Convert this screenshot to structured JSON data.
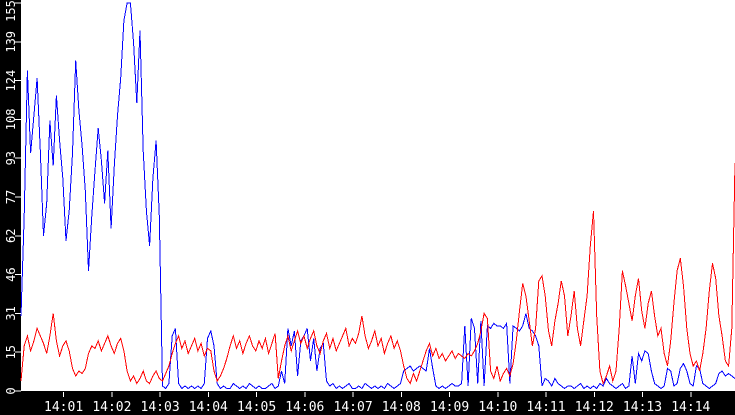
{
  "chart_data": {
    "type": "line",
    "title": "",
    "xlabel": "",
    "ylabel": "",
    "grid": false,
    "legend": null,
    "plot_background": "#ffffff",
    "frame_background": "#000000",
    "axis_text_color": "#ffffff",
    "x_axis": {
      "tick_labels": [
        "14:01",
        "14:02",
        "14:03",
        "14:04",
        "14:05",
        "14:06",
        "14:07",
        "14:08",
        "14:09",
        "14:10",
        "14:11",
        "14:12",
        "14:13",
        "14:14"
      ],
      "start_time": "14:00:07",
      "start_offset_seconds": 7,
      "step_seconds": 4,
      "end_time": "14:14:55"
    },
    "y_axis": {
      "tick_labels": [
        "0",
        "15",
        "31",
        "46",
        "62",
        "77",
        "93",
        "108",
        "124",
        "139",
        "155"
      ],
      "tick_values": [
        0,
        15.5,
        31,
        46.5,
        62,
        77.5,
        93,
        108.5,
        124,
        139.5,
        155
      ],
      "range": [
        0,
        155
      ]
    },
    "series": [
      {
        "name": "blue",
        "color": "#0000ff",
        "values": [
          30,
          70,
          128,
          95,
          110,
          125,
          96,
          62,
          75,
          108,
          90,
          118,
          100,
          85,
          60,
          72,
          95,
          132,
          112,
          98,
          80,
          48,
          70,
          88,
          105,
          92,
          75,
          96,
          65,
          90,
          110,
          125,
          148,
          155,
          155,
          139,
          115,
          144,
          96,
          72,
          58,
          85,
          100,
          70,
          2,
          1,
          3,
          22,
          25,
          3,
          1,
          2,
          1,
          2,
          1,
          2,
          1,
          3,
          21,
          24,
          18,
          3,
          1,
          2,
          1,
          1,
          3,
          2,
          1,
          2,
          1,
          3,
          2,
          1,
          2,
          1,
          1,
          2,
          3,
          1,
          2,
          8,
          3,
          25,
          18,
          24,
          6,
          20,
          22,
          25,
          12,
          21,
          8,
          17,
          19,
          4,
          2,
          3,
          1,
          2,
          1,
          2,
          3,
          1,
          1,
          2,
          1,
          3,
          2,
          1,
          2,
          1,
          2,
          1,
          3,
          2,
          1,
          2,
          3,
          8,
          9,
          10,
          8,
          9,
          10,
          9,
          8,
          17,
          9,
          2,
          1,
          2,
          1,
          2,
          3,
          2,
          2,
          3,
          26,
          2,
          29,
          25,
          3,
          28,
          2,
          26,
          25,
          27,
          26,
          26,
          25,
          27,
          3,
          26,
          25,
          24,
          26,
          31,
          25,
          24,
          22,
          18,
          2,
          5,
          4,
          2,
          5,
          3,
          2,
          1,
          2,
          2,
          1,
          2,
          3,
          1,
          2,
          1,
          2,
          1,
          3,
          2,
          5,
          3,
          2,
          1,
          2,
          3,
          1,
          2,
          14,
          3,
          15,
          12,
          16,
          15,
          8,
          3,
          2,
          1,
          2,
          9,
          8,
          2,
          3,
          9,
          11,
          8,
          3,
          2,
          10,
          9,
          3,
          2,
          1,
          2,
          3,
          7,
          8,
          6,
          7,
          6,
          5
        ]
      },
      {
        "name": "red",
        "color": "#ff0000",
        "values": [
          4,
          18,
          22,
          16,
          20,
          25,
          22,
          19,
          15,
          22,
          31,
          20,
          14,
          18,
          20,
          16,
          9,
          6,
          8,
          7,
          9,
          15,
          18,
          17,
          20,
          16,
          19,
          22,
          18,
          15,
          19,
          21,
          16,
          8,
          4,
          6,
          3,
          5,
          8,
          4,
          3,
          6,
          8,
          5,
          4,
          7,
          10,
          15,
          19,
          22,
          17,
          20,
          15,
          18,
          21,
          16,
          19,
          14,
          17,
          16,
          8,
          4,
          6,
          9,
          13,
          18,
          22,
          17,
          20,
          15,
          19,
          22,
          18,
          16,
          20,
          17,
          21,
          15,
          19,
          23,
          5,
          12,
          18,
          22,
          16,
          20,
          24,
          19,
          22,
          17,
          21,
          24,
          18,
          15,
          20,
          23,
          17,
          21,
          16,
          19,
          22,
          25,
          18,
          21,
          19,
          23,
          30,
          22,
          17,
          20,
          24,
          18,
          21,
          15,
          19,
          22,
          17,
          20,
          16,
          10,
          5,
          3,
          7,
          4,
          8,
          12,
          16,
          19,
          14,
          17,
          13,
          15,
          12,
          14,
          16,
          13,
          15,
          14,
          13,
          15,
          14,
          16,
          19,
          24,
          31,
          29,
          8,
          5,
          10,
          4,
          7,
          9,
          6,
          11,
          20,
          32,
          43,
          38,
          28,
          18,
          25,
          44,
          46,
          38,
          24,
          18,
          28,
          35,
          44,
          38,
          22,
          30,
          40,
          25,
          18,
          28,
          38,
          58,
          72,
          30,
          8,
          3,
          6,
          10,
          4,
          8,
          25,
          48,
          42,
          35,
          28,
          38,
          45,
          32,
          25,
          35,
          40,
          30,
          22,
          25,
          15,
          10,
          20,
          35,
          48,
          53,
          42,
          25,
          15,
          10,
          12,
          8,
          15,
          25,
          40,
          51,
          45,
          30,
          22,
          12,
          10,
          25,
          91
        ]
      }
    ]
  }
}
